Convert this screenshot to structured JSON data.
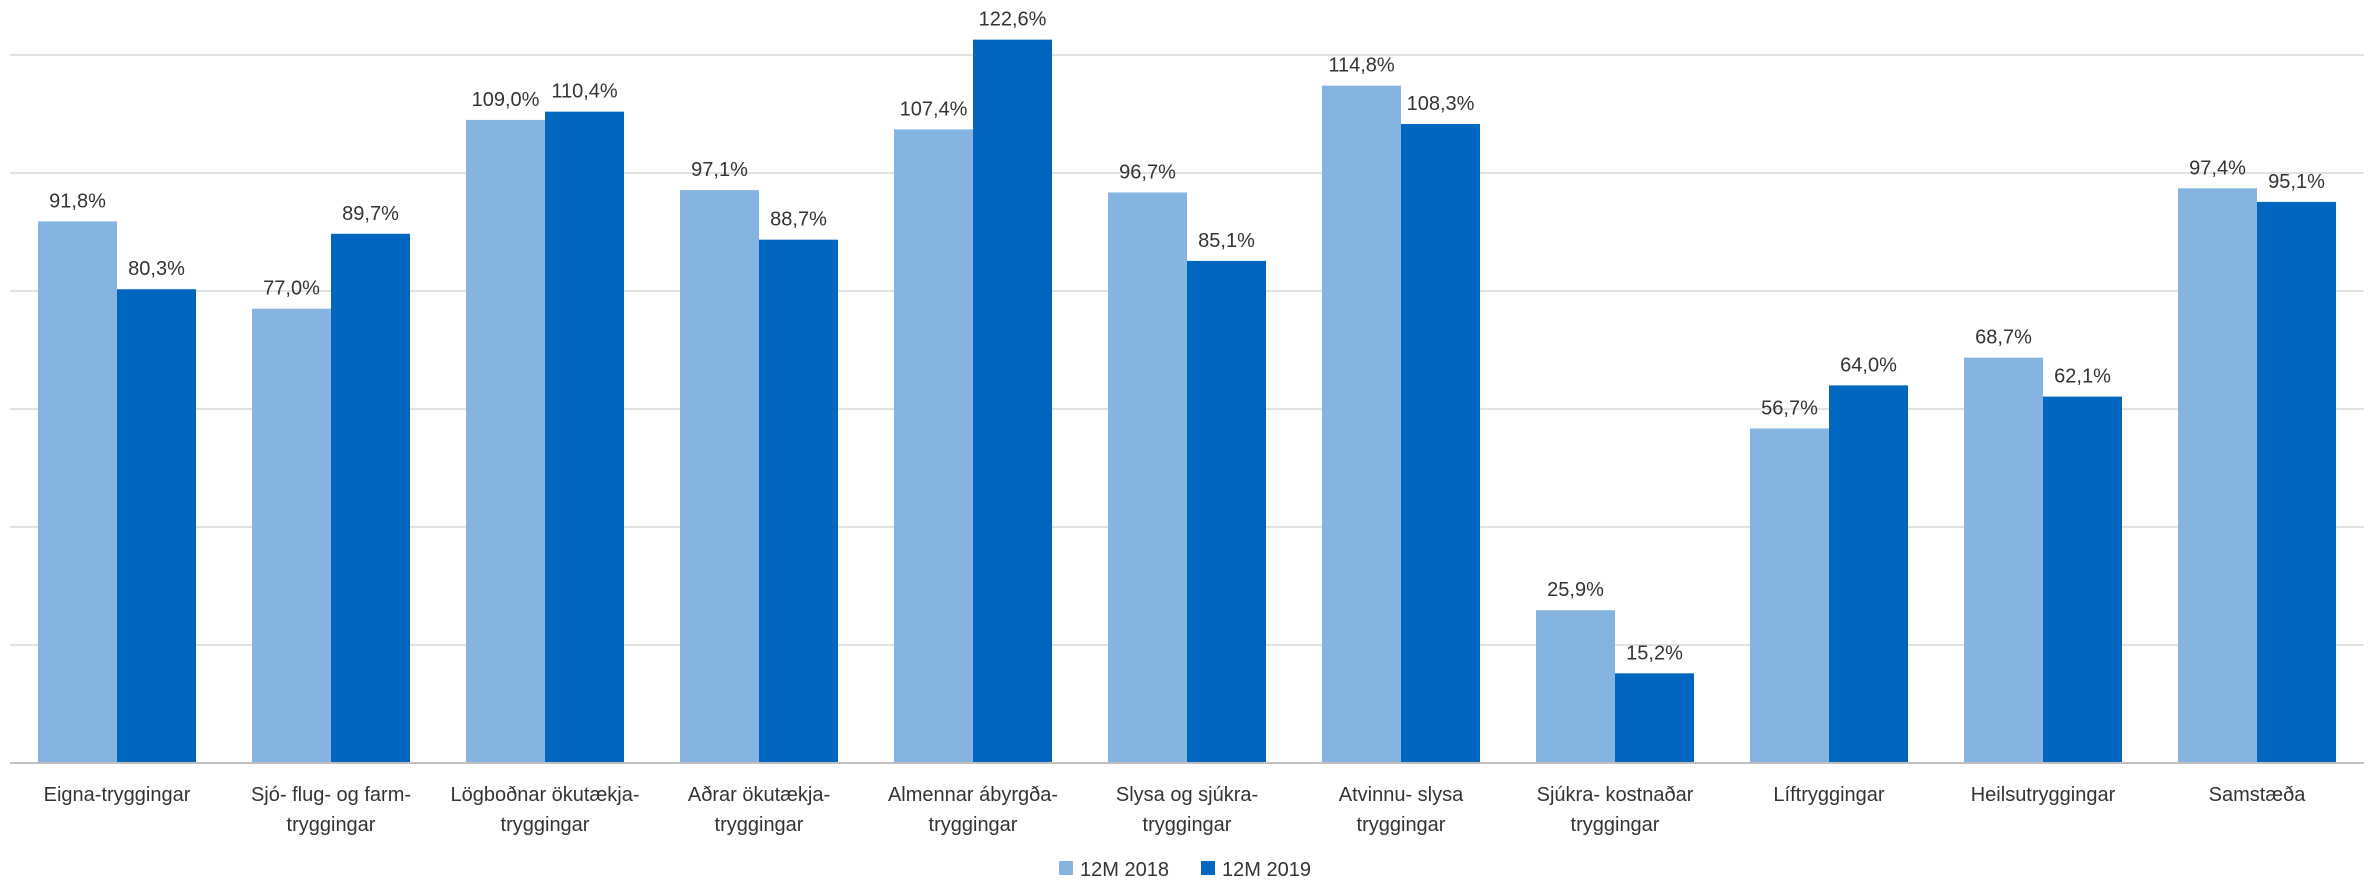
{
  "chart_data": {
    "type": "bar",
    "title": "",
    "xlabel": "",
    "ylabel": "",
    "ylim": [
      0,
      120
    ],
    "grid": true,
    "legend_position": "bottom-center",
    "categories": [
      [
        "Eigna-tryggingar"
      ],
      [
        "Sjó- flug- og farm-",
        "tryggingar"
      ],
      [
        "Lögboðnar ökutækja-",
        "tryggingar"
      ],
      [
        "Aðrar ökutækja-",
        "tryggingar"
      ],
      [
        "Almennar ábyrgða-",
        "tryggingar"
      ],
      [
        "Slysa og sjúkra-",
        "tryggingar"
      ],
      [
        "Atvinnu- slysa",
        "tryggingar"
      ],
      [
        "Sjúkra- kostnaðar",
        "tryggingar"
      ],
      [
        "Líftryggingar"
      ],
      [
        "Heilsutryggingar"
      ],
      [
        "Samstæða"
      ]
    ],
    "series": [
      {
        "name": "12M 2018",
        "color": "#85b4e0",
        "values": [
          91.8,
          77.0,
          109.0,
          97.1,
          107.4,
          96.7,
          114.8,
          25.9,
          56.7,
          68.7,
          97.4
        ],
        "labels": [
          "91,8%",
          "77,0%",
          "109,0%",
          "97,1%",
          "107,4%",
          "96,7%",
          "114,8%",
          "25,9%",
          "56,7%",
          "68,7%",
          "97,4%"
        ]
      },
      {
        "name": "12M 2019",
        "color": "#0066c0",
        "values": [
          80.3,
          89.7,
          110.4,
          88.7,
          122.6,
          85.1,
          108.3,
          15.2,
          64.0,
          62.1,
          95.1
        ],
        "labels": [
          "80,3%",
          "89,7%",
          "110,4%",
          "88,7%",
          "122,6%",
          "85,1%",
          "108,3%",
          "15,2%",
          "64,0%",
          "62,1%",
          "95,1%"
        ]
      }
    ]
  }
}
